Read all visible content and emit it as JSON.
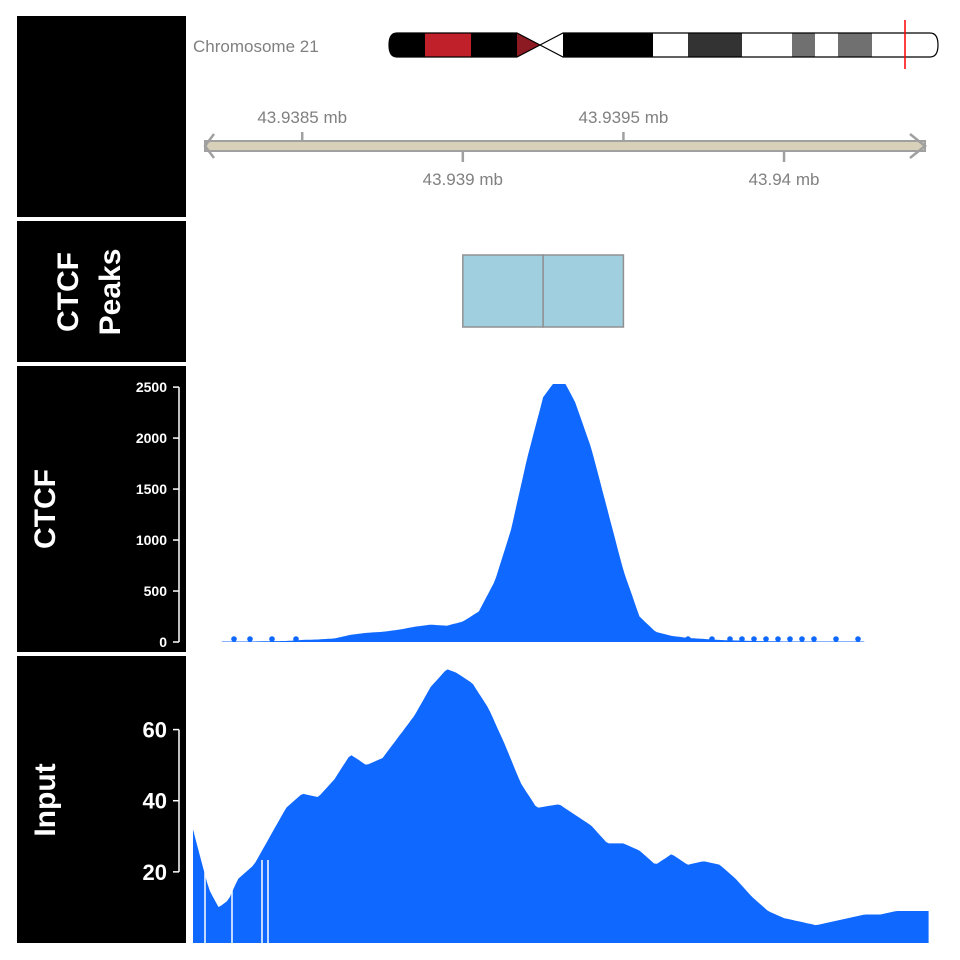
{
  "chart_data": {
    "type": "genome-tracks",
    "ideogram": {
      "label": "Chromosome 21",
      "bands": [
        {
          "color": "#000000"
        },
        {
          "color": "#c0202a"
        },
        {
          "color": "#000000"
        },
        {
          "color": "#8b1a22"
        },
        {
          "color": "#ffffff"
        },
        {
          "color": "#000000"
        },
        {
          "color": "#ffffff"
        },
        {
          "color": "#333333"
        },
        {
          "color": "#ffffff"
        },
        {
          "color": "#707070"
        },
        {
          "color": "#ffffff"
        },
        {
          "color": "#707070"
        },
        {
          "color": "#ffffff"
        }
      ]
    },
    "genome_axis": {
      "xlim_mb": [
        43.93816,
        43.94047
      ],
      "ticks_top": [
        {
          "value": 43.9385,
          "label": "43.9385 mb"
        },
        {
          "value": 43.9395,
          "label": "43.9395 mb"
        }
      ],
      "ticks_bottom": [
        {
          "value": 43.939,
          "label": "43.939 mb"
        },
        {
          "value": 43.94,
          "label": "43.94 mb"
        }
      ]
    },
    "tracks": [
      {
        "title_lines": [
          "CTCF",
          "Peaks"
        ],
        "type": "annotation",
        "features": [
          {
            "start": 43.939,
            "end": 43.93925
          },
          {
            "start": 43.93925,
            "end": 43.9395
          }
        ],
        "fill": "#a0cfe0"
      },
      {
        "title": "CTCF",
        "type": "histogram",
        "ylim": [
          0,
          2550
        ],
        "yticks": [
          {
            "value": 0,
            "label": "0"
          },
          {
            "value": 500,
            "label": "500"
          },
          {
            "value": 1000,
            "label": "1000"
          },
          {
            "value": 1500,
            "label": "1500"
          },
          {
            "value": 2000,
            "label": "2000"
          },
          {
            "value": 2500,
            "label": "2500"
          }
        ],
        "color": "#0f68ff",
        "profile": [
          [
            43.93825,
            5
          ],
          [
            43.9383,
            5
          ],
          [
            43.93835,
            5
          ],
          [
            43.9384,
            8
          ],
          [
            43.93845,
            10
          ],
          [
            43.9385,
            20
          ],
          [
            43.93855,
            25
          ],
          [
            43.9386,
            35
          ],
          [
            43.93865,
            70
          ],
          [
            43.9387,
            90
          ],
          [
            43.93875,
            100
          ],
          [
            43.9388,
            120
          ],
          [
            43.93885,
            150
          ],
          [
            43.9389,
            170
          ],
          [
            43.93895,
            160
          ],
          [
            43.939,
            200
          ],
          [
            43.93905,
            300
          ],
          [
            43.9391,
            600
          ],
          [
            43.93915,
            1100
          ],
          [
            43.9392,
            1800
          ],
          [
            43.93925,
            2400
          ],
          [
            43.93928,
            2530
          ],
          [
            43.93932,
            2530
          ],
          [
            43.93935,
            2350
          ],
          [
            43.9394,
            1900
          ],
          [
            43.93945,
            1300
          ],
          [
            43.9395,
            700
          ],
          [
            43.93955,
            250
          ],
          [
            43.9396,
            100
          ],
          [
            43.93965,
            60
          ],
          [
            43.9397,
            40
          ],
          [
            43.93975,
            30
          ],
          [
            43.9398,
            20
          ],
          [
            43.93985,
            15
          ],
          [
            43.9399,
            10
          ],
          [
            43.93995,
            8
          ],
          [
            43.94,
            5
          ],
          [
            43.94005,
            5
          ],
          [
            43.9401,
            5
          ],
          [
            43.94015,
            5
          ],
          [
            43.9402,
            5
          ],
          [
            43.94025,
            5
          ]
        ]
      },
      {
        "title": "Input",
        "type": "histogram",
        "ylim": [
          0,
          79
        ],
        "yticks": [
          {
            "value": 20,
            "label": "20"
          },
          {
            "value": 40,
            "label": "40"
          },
          {
            "value": 60,
            "label": "60"
          }
        ],
        "color": "#0f68ff",
        "profile": [
          [
            43.93816,
            32
          ],
          [
            43.93818,
            25
          ],
          [
            43.93821,
            15
          ],
          [
            43.93824,
            10
          ],
          [
            43.93827,
            12
          ],
          [
            43.9383,
            18
          ],
          [
            43.93835,
            22
          ],
          [
            43.9384,
            30
          ],
          [
            43.93845,
            38
          ],
          [
            43.9385,
            42
          ],
          [
            43.93855,
            41
          ],
          [
            43.9386,
            46
          ],
          [
            43.93865,
            53
          ],
          [
            43.9387,
            50
          ],
          [
            43.93875,
            52
          ],
          [
            43.9388,
            58
          ],
          [
            43.93885,
            64
          ],
          [
            43.9389,
            72
          ],
          [
            43.93895,
            77
          ],
          [
            43.93898,
            76
          ],
          [
            43.93903,
            73
          ],
          [
            43.93908,
            66
          ],
          [
            43.93913,
            56
          ],
          [
            43.93918,
            45
          ],
          [
            43.93923,
            38
          ],
          [
            43.9393,
            39
          ],
          [
            43.93935,
            36
          ],
          [
            43.9394,
            33
          ],
          [
            43.93945,
            28
          ],
          [
            43.9395,
            28
          ],
          [
            43.93955,
            26
          ],
          [
            43.9396,
            22
          ],
          [
            43.93965,
            25
          ],
          [
            43.9397,
            22
          ],
          [
            43.93975,
            23
          ],
          [
            43.9398,
            22
          ],
          [
            43.93985,
            18
          ],
          [
            43.9399,
            13
          ],
          [
            43.93995,
            9
          ],
          [
            43.94,
            7
          ],
          [
            43.94005,
            6
          ],
          [
            43.9401,
            5
          ],
          [
            43.94015,
            6
          ],
          [
            43.9402,
            7
          ],
          [
            43.94025,
            8
          ],
          [
            43.9403,
            8
          ],
          [
            43.94035,
            9
          ],
          [
            43.9404,
            9
          ],
          [
            43.94045,
            9
          ]
        ]
      }
    ]
  }
}
